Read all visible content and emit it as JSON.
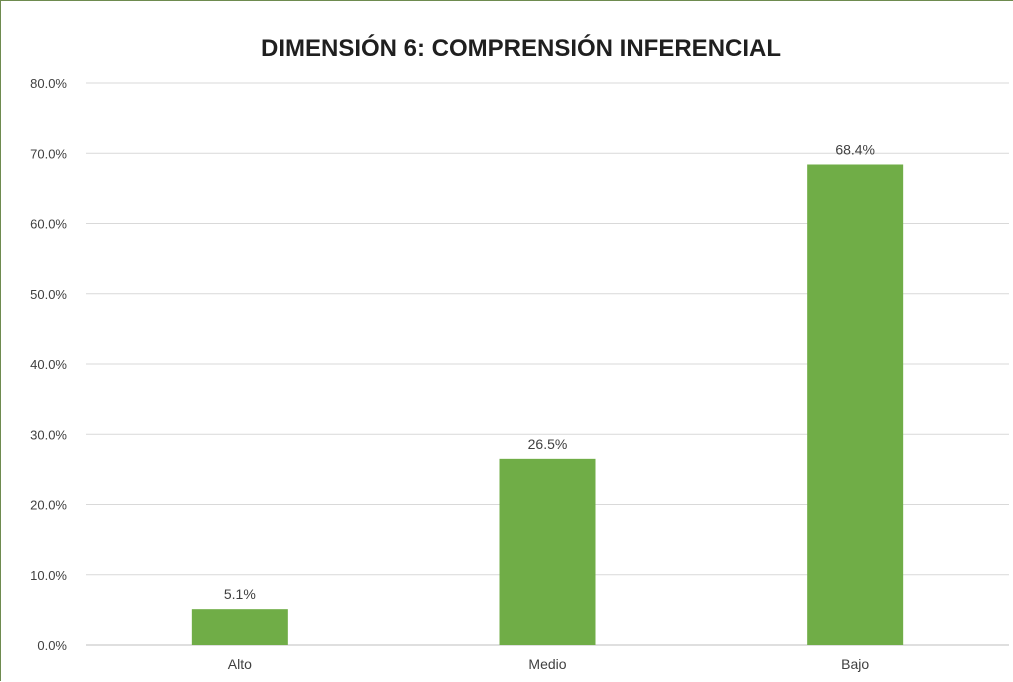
{
  "chart_data": {
    "type": "bar",
    "title": "DIMENSIÓN 6: COMPRENSIÓN INFERENCIAL",
    "categories": [
      "Alto",
      "Medio",
      "Bajo"
    ],
    "values": [
      5.1,
      26.5,
      68.4
    ],
    "value_labels": [
      "5.1%",
      "26.5%",
      "68.4%"
    ],
    "ylim": [
      0,
      80
    ],
    "yticks": [
      0,
      10,
      20,
      30,
      40,
      50,
      60,
      70,
      80
    ],
    "ytick_labels": [
      "0.0%",
      "10.0%",
      "20.0%",
      "30.0%",
      "40.0%",
      "50.0%",
      "60.0%",
      "70.0%",
      "80.0%"
    ],
    "xlabel": "",
    "ylabel": "",
    "grid": true,
    "legend": "none",
    "bar_color": "#70ad47"
  }
}
